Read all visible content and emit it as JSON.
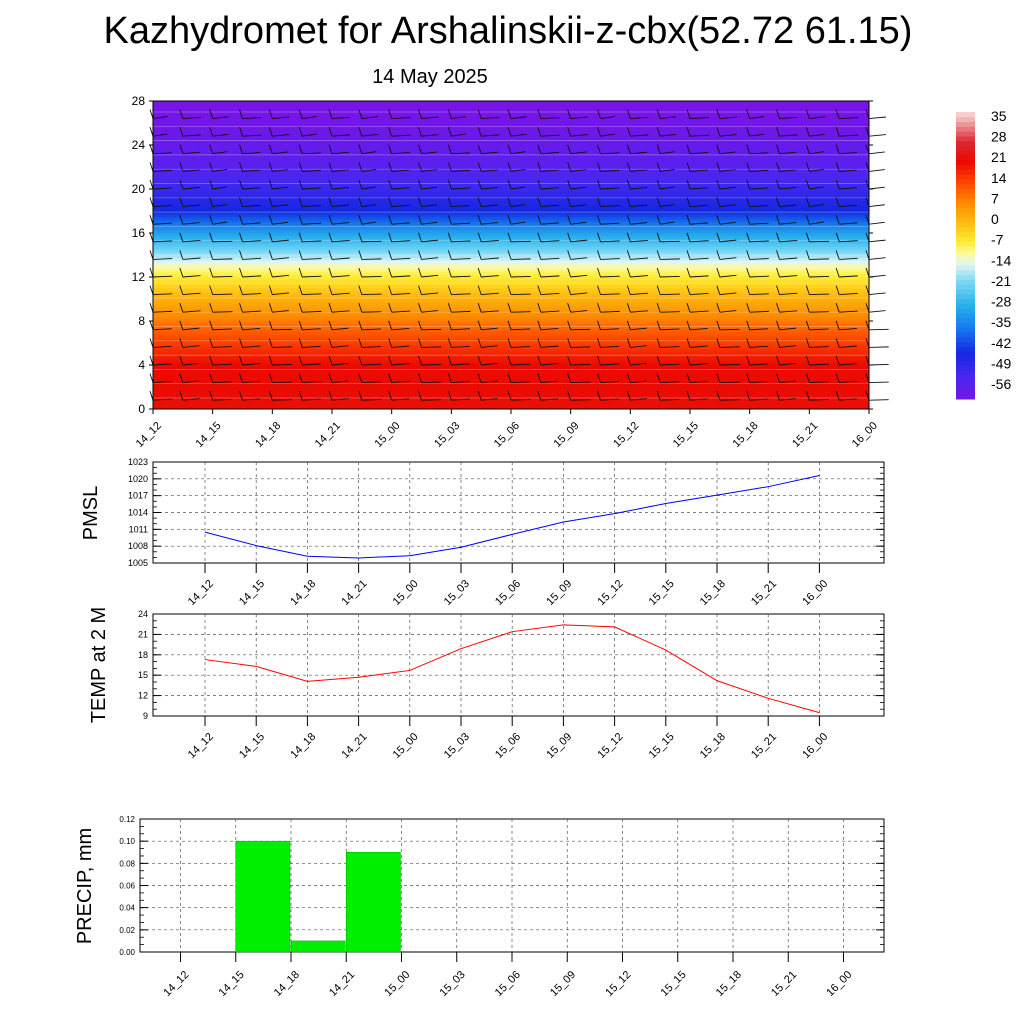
{
  "title": "Kazhydromet for Arshalinskii-z-cbx(52.72 61.15)",
  "subtitle": "14 May 2025",
  "colors": {
    "pmsl_line": "#0000ff",
    "temp_line": "#ff0000",
    "precip_bar": "#00ee00",
    "precip_bar_border": "#00aa00"
  },
  "chart_data": [
    {
      "type": "heatmap",
      "name": "Vertical cross-section temperature (contour fill with wind barbs)",
      "categories": [
        "14_12",
        "14_15",
        "14_18",
        "14_21",
        "15_00",
        "15_03",
        "15_06",
        "15_09",
        "15_12",
        "15_15",
        "15_18",
        "15_21",
        "16_00"
      ],
      "ylim": [
        0,
        28
      ],
      "yticks": [
        "0",
        "4",
        "8",
        "12",
        "16",
        "20",
        "24",
        "28"
      ],
      "colorbar_labels": [
        "35",
        "28",
        "21",
        "14",
        "7",
        "0",
        "-7",
        "-14",
        "-21",
        "-28",
        "-35",
        "-42",
        "-49",
        "-56"
      ],
      "colorbar_range": [
        -60,
        38
      ],
      "level_temps": [
        {
          "level": 0,
          "value": 22
        },
        {
          "level": 4,
          "value": 21
        },
        {
          "level": 7,
          "value": 12
        },
        {
          "level": 10,
          "value": 2
        },
        {
          "level": 12.5,
          "value": -8
        },
        {
          "level": 14,
          "value": -18
        },
        {
          "level": 16,
          "value": -30
        },
        {
          "level": 18,
          "value": -44
        },
        {
          "level": 20,
          "value": -50
        },
        {
          "level": 22,
          "value": -55
        },
        {
          "level": 24,
          "value": -57
        },
        {
          "level": 28,
          "value": -61
        }
      ]
    },
    {
      "type": "line",
      "ylabel": "PMSL",
      "categories": [
        "14_12",
        "14_15",
        "14_18",
        "14_21",
        "15_00",
        "15_03",
        "15_06",
        "15_09",
        "15_12",
        "15_15",
        "15_18",
        "15_21",
        "16_00"
      ],
      "values": [
        1010.5,
        1008.1,
        1006.2,
        1005.9,
        1006.3,
        1007.8,
        1010.1,
        1012.3,
        1013.8,
        1015.6,
        1017.1,
        1018.6,
        1020.6
      ],
      "ylim": [
        1005,
        1023
      ],
      "yticks": [
        "1005",
        "1008",
        "1011",
        "1014",
        "1017",
        "1020",
        "1023"
      ]
    },
    {
      "type": "line",
      "ylabel": "TEMP at 2 M",
      "categories": [
        "14_12",
        "14_15",
        "14_18",
        "14_21",
        "15_00",
        "15_03",
        "15_06",
        "15_09",
        "15_12",
        "15_15",
        "15_18",
        "15_21",
        "16_00"
      ],
      "values": [
        17.3,
        16.3,
        14.1,
        14.7,
        15.7,
        18.9,
        21.4,
        22.4,
        22.1,
        18.7,
        14.2,
        11.6,
        9.5
      ],
      "ylim": [
        9,
        24
      ],
      "yticks": [
        "9",
        "12",
        "15",
        "18",
        "21",
        "24"
      ]
    },
    {
      "type": "bar",
      "ylabel": "PRECIP, mm",
      "categories": [
        "14_12",
        "14_15",
        "14_18",
        "14_21",
        "15_00",
        "15_03",
        "15_06",
        "15_09",
        "15_12",
        "15_15",
        "15_18",
        "15_21",
        "16_00"
      ],
      "values": [
        0,
        0.1,
        0.01,
        0.09,
        0,
        0,
        0,
        0,
        0,
        0,
        0,
        0,
        0
      ],
      "ylim": [
        0,
        0.12
      ],
      "yticks": [
        "0.00",
        "0.02",
        "0.04",
        "0.06",
        "0.08",
        "0.10",
        "0.12"
      ]
    }
  ]
}
